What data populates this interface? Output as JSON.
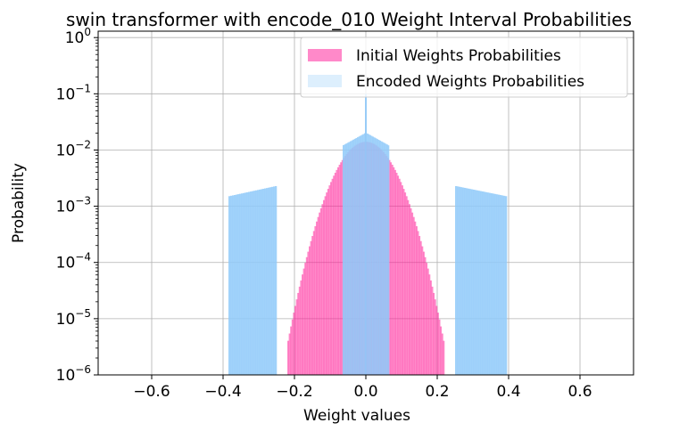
{
  "chart_data": {
    "type": "bar",
    "title": "swin transformer with encode_010 Weight Interval Probabilities",
    "xlabel": "Weight values",
    "ylabel": "Probability",
    "xlim": [
      -0.75,
      0.75
    ],
    "ylim": [
      1e-06,
      1.3
    ],
    "yscale": "log",
    "grid": true,
    "legend_position": "top-right",
    "x_ticks": [
      {
        "value": -0.6,
        "label": "−0.6"
      },
      {
        "value": -0.4,
        "label": "−0.4"
      },
      {
        "value": -0.2,
        "label": "−0.2"
      },
      {
        "value": 0.0,
        "label": "0.0"
      },
      {
        "value": 0.2,
        "label": "0.2"
      },
      {
        "value": 0.4,
        "label": "0.4"
      },
      {
        "value": 0.6,
        "label": "0.6"
      }
    ],
    "y_ticks": [
      {
        "value": 1,
        "base": "10",
        "exp": "0"
      },
      {
        "value": 0.1,
        "base": "10",
        "exp": "−1"
      },
      {
        "value": 0.01,
        "base": "10",
        "exp": "−2"
      },
      {
        "value": 0.001,
        "base": "10",
        "exp": "−3"
      },
      {
        "value": 0.0001,
        "base": "10",
        "exp": "−4"
      },
      {
        "value": 1e-05,
        "base": "10",
        "exp": "−5"
      },
      {
        "value": 1e-06,
        "base": "10",
        "exp": "−6"
      }
    ],
    "series": [
      {
        "name": "Initial Weights Probabilities",
        "color": "#ff1493",
        "opacity": 0.5,
        "distribution": "gaussian",
        "peak": 0.014,
        "sigma": 0.054,
        "support": [
          -0.22,
          0.22
        ]
      },
      {
        "name": "Encoded Weights Probabilities",
        "color": "#90caf9",
        "opacity": 0.3,
        "outer_bands": [
          {
            "x": [
              -0.385,
              -0.25
            ],
            "y": [
              0.0015,
              0.0023
            ]
          },
          {
            "x": [
              0.25,
              0.395
            ],
            "y": [
              0.0023,
              0.0015
            ]
          }
        ],
        "inner_bands": [
          {
            "x": [
              -0.065,
              -0.002
            ],
            "y": [
              0.012,
              0.02
            ]
          },
          {
            "x": [
              0.002,
              0.065
            ],
            "y": [
              0.02,
              0.012
            ]
          }
        ],
        "center_spike": 0.1
      }
    ]
  }
}
